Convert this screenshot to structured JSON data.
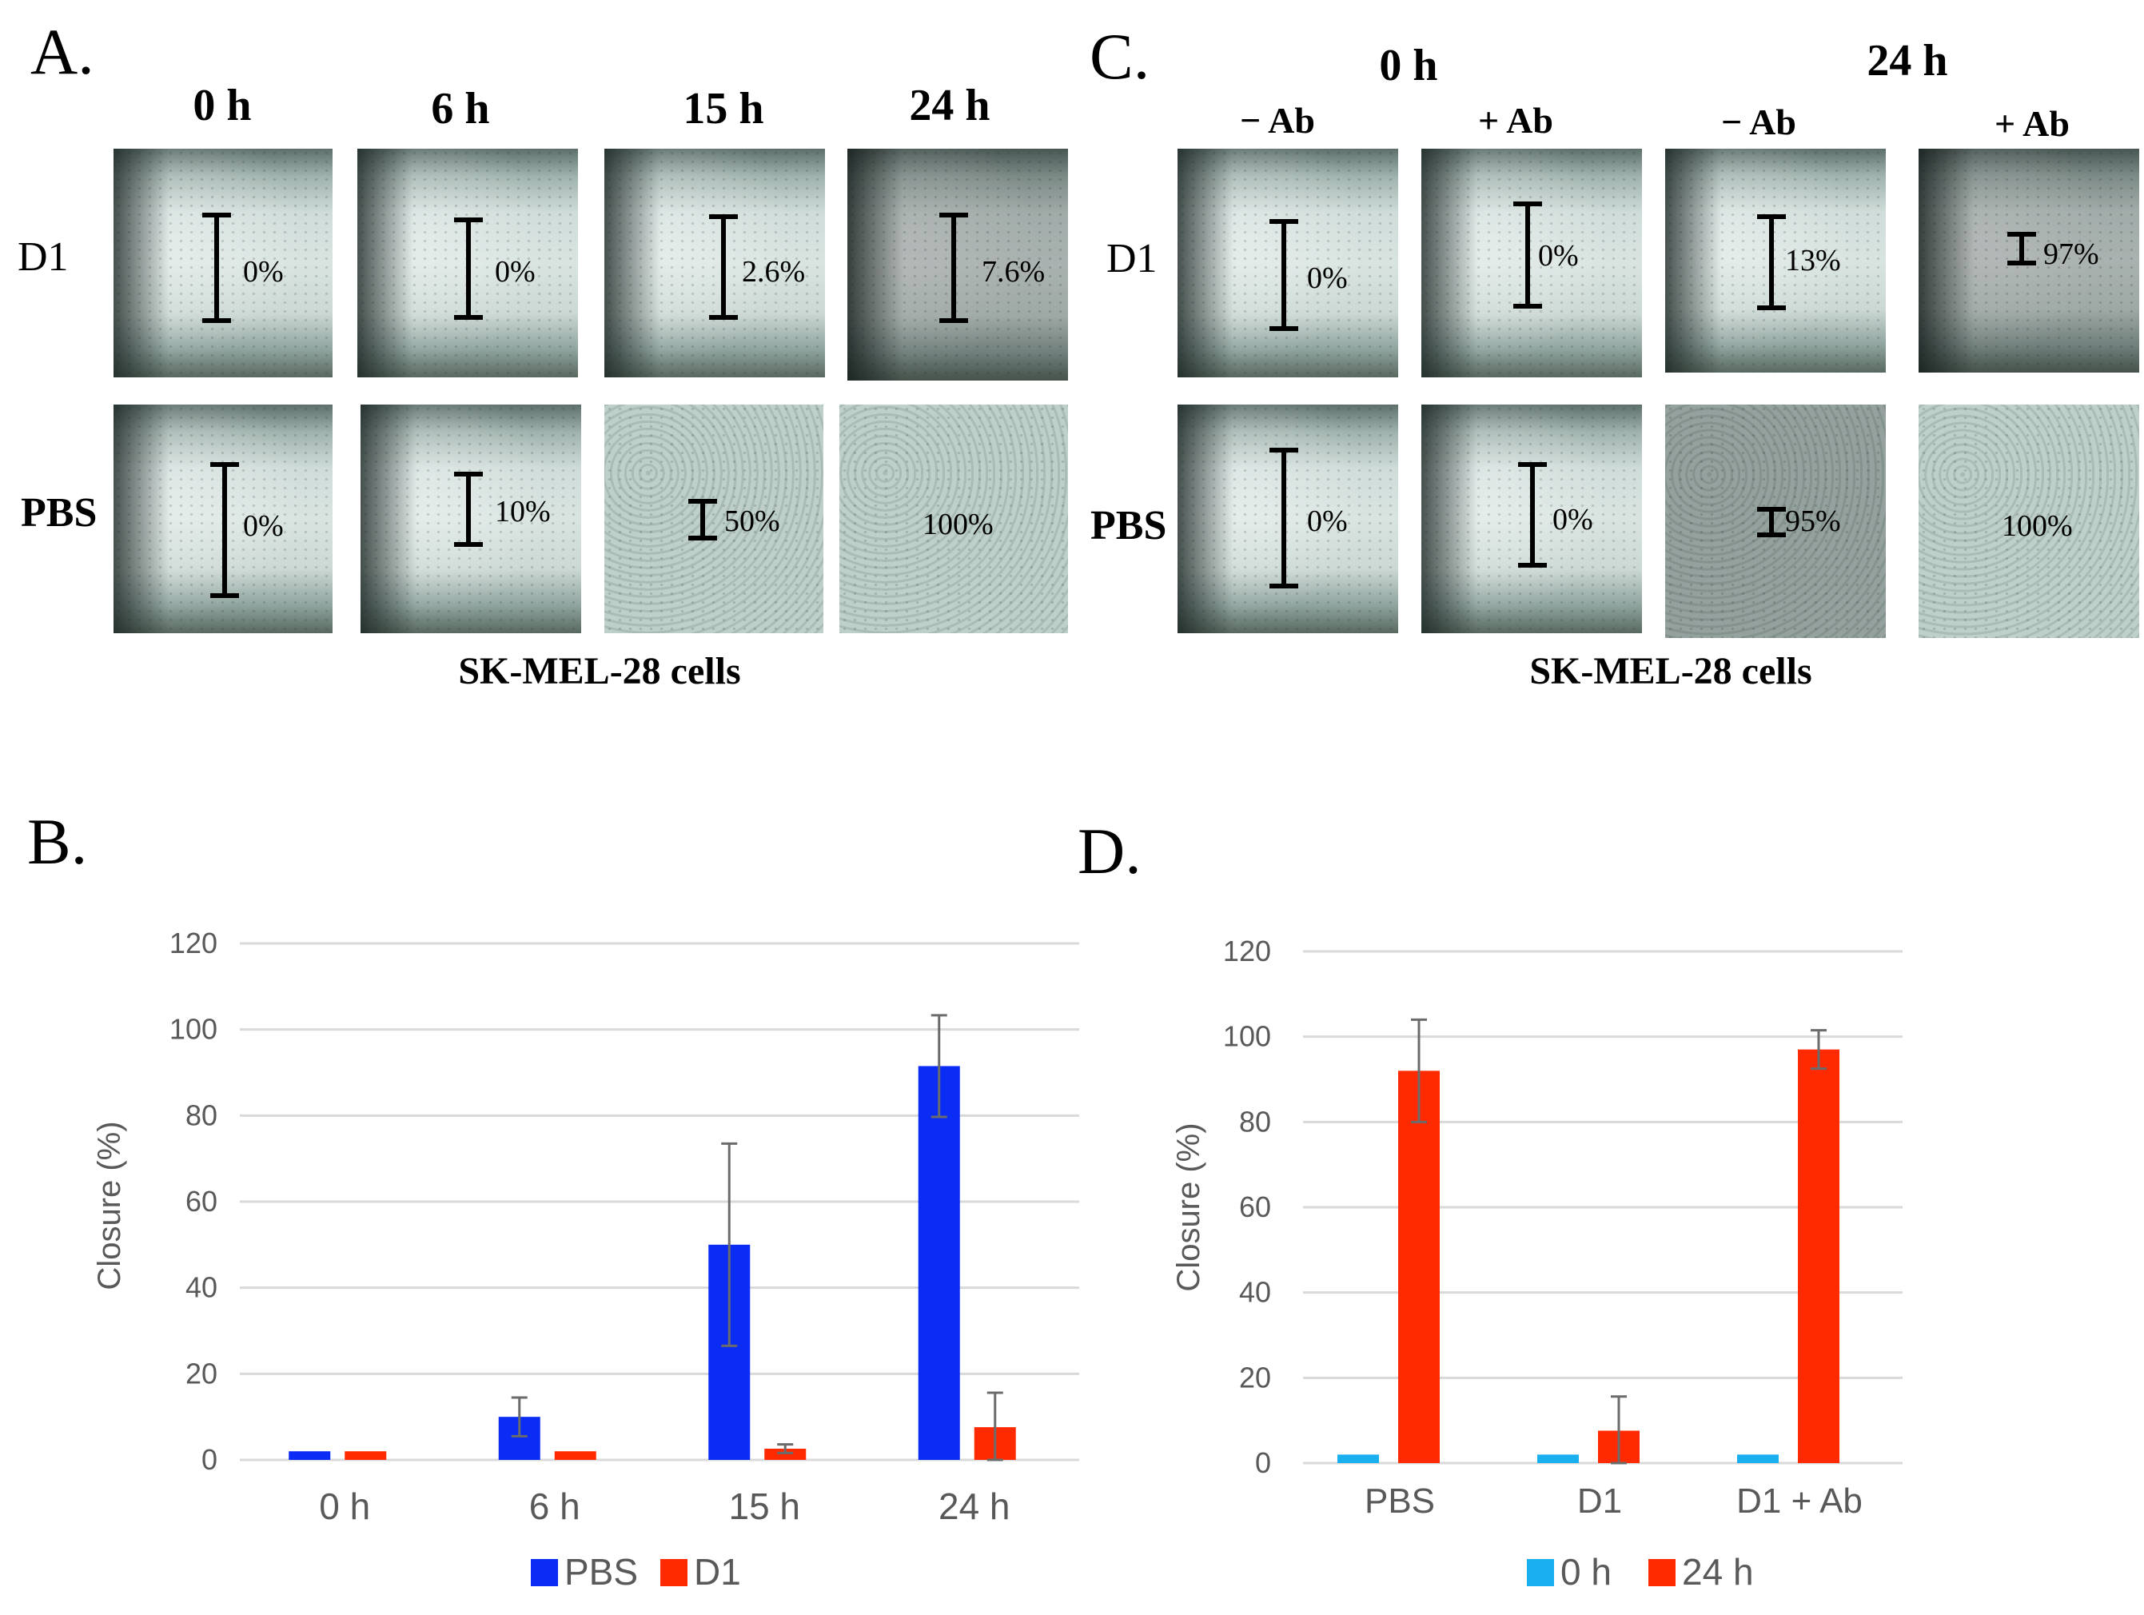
{
  "panel_labels": {
    "a": "A.",
    "b": "B.",
    "c": "C.",
    "d": "D."
  },
  "panel_a": {
    "time_headers": [
      "0 h",
      "6 h",
      "15 h",
      "24 h"
    ],
    "row_labels": [
      "D1",
      "PBS"
    ],
    "d1_closures": [
      "0%",
      "0%",
      "2.6%",
      "7.6%"
    ],
    "pbs_closures": [
      "0%",
      "10%",
      "50%",
      "100%"
    ],
    "caption": "SK-MEL-28 cells"
  },
  "panel_c": {
    "time_headers": [
      "0 h",
      "24 h"
    ],
    "ab_headers": [
      "− Ab",
      "+ Ab",
      "− Ab",
      "+ Ab"
    ],
    "row_labels": [
      "D1",
      "PBS"
    ],
    "d1_closures": [
      "0%",
      "0%",
      "13%",
      "97%"
    ],
    "pbs_closures": [
      "0%",
      "0%",
      "95%",
      "100%"
    ],
    "caption": "SK-MEL-28 cells"
  },
  "colors": {
    "pbs": "#0a2cf5",
    "d1": "#ff2a00",
    "zero_h": "#1ab0f0",
    "twentyfour_h": "#ff2a00",
    "grid": "#d9d9d9",
    "axis_text": "#595959"
  },
  "chart_data": [
    {
      "type": "bar",
      "panel": "B",
      "categories": [
        "0 h",
        "6 h",
        "15 h",
        "24 h"
      ],
      "series": [
        {
          "name": "PBS",
          "values": [
            2,
            10,
            50,
            91.5
          ],
          "errors": [
            0.5,
            4.5,
            23.5,
            11.8
          ]
        },
        {
          "name": "D1",
          "values": [
            2,
            2,
            2.6,
            7.6
          ],
          "errors": [
            0.3,
            0.3,
            1,
            8
          ]
        }
      ],
      "ylabel": "Closure (%)",
      "xlabel": "",
      "ylim": [
        0,
        120
      ],
      "yticks": [
        0,
        20,
        40,
        60,
        80,
        100,
        120
      ],
      "legend_position": "bottom"
    },
    {
      "type": "bar",
      "panel": "D",
      "categories": [
        "PBS",
        "D1",
        "D1 + Ab"
      ],
      "series": [
        {
          "name": "0 h",
          "values": [
            2,
            2,
            2
          ],
          "errors": [
            0.3,
            0.3,
            0.3
          ]
        },
        {
          "name": "24 h",
          "values": [
            92,
            7.6,
            97
          ],
          "errors": [
            12,
            8,
            4.5
          ]
        }
      ],
      "ylabel": "Closure (%)",
      "xlabel": "",
      "ylim": [
        0,
        120
      ],
      "yticks": [
        0,
        20,
        40,
        60,
        80,
        100,
        120
      ],
      "legend_position": "bottom"
    }
  ]
}
